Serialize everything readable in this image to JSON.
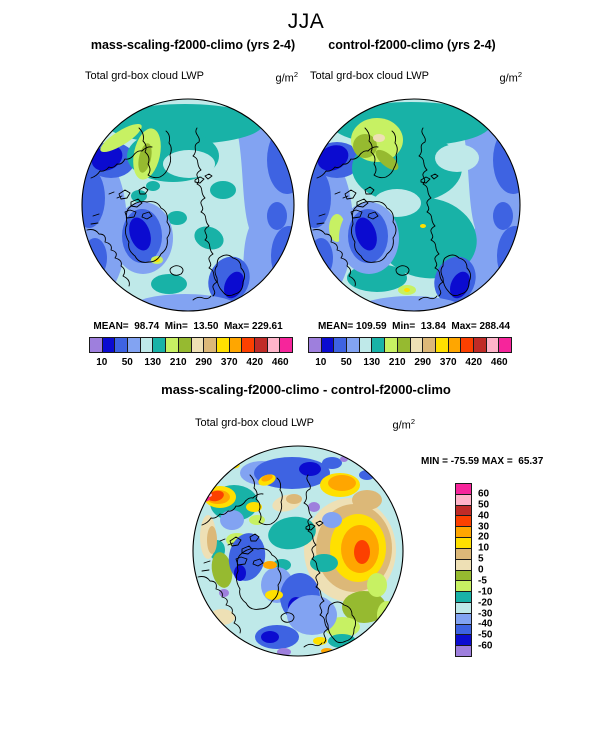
{
  "page": {
    "season_title": "JJA"
  },
  "panels": {
    "left": {
      "title": "mass-scaling-f2000-climo (yrs 2-4)",
      "field": "Total grd-box cloud LWP",
      "units": "g/m",
      "units_sup": "2",
      "stats": "MEAN=  98.74  Min=  13.50  Max= 229.61"
    },
    "right": {
      "title": "control-f2000-climo (yrs 2-4)",
      "field": "Total grd-box cloud LWP",
      "units": "g/m",
      "units_sup": "2",
      "stats": "MEAN= 109.59  Min=  13.84  Max= 288.44"
    },
    "diff": {
      "title": "mass-scaling-f2000-climo - control-f2000-climo",
      "field": "Total grd-box cloud LWP",
      "units": "g/m",
      "units_sup": "2",
      "minmax": "MIN = -75.59 MAX =  65.37"
    }
  },
  "colorbars": {
    "lwp": {
      "colors": [
        "#9e7fdd",
        "#0b0bd0",
        "#3e63e2",
        "#82a3f2",
        "#bfe9e9",
        "#18b2a7",
        "#c7f163",
        "#96ba30",
        "#eee0b5",
        "#dcb878",
        "#ffe000",
        "#ffa600",
        "#fc4000",
        "#c02b27",
        "#ffb4c9",
        "#f6259b"
      ],
      "labels": [
        "10",
        "50",
        "130",
        "210",
        "290",
        "370",
        "420",
        "460"
      ]
    },
    "diff": {
      "colors": [
        "#f6259b",
        "#ffb4c9",
        "#c02b27",
        "#fc4000",
        "#ffa600",
        "#ffe000",
        "#dcb878",
        "#eee0b5",
        "#96ba30",
        "#c7f163",
        "#18b2a7",
        "#bfe9e9",
        "#82a3f2",
        "#3e63e2",
        "#0b0bd0",
        "#9e7fdd"
      ],
      "labels": [
        "60",
        "50",
        "40",
        "30",
        "20",
        "10",
        "5",
        "0",
        "-5",
        "-10",
        "-20",
        "-30",
        "-40",
        "-50",
        "-60"
      ]
    }
  },
  "chart_data": [
    {
      "type": "heatmap",
      "subtype": "polar-stereographic-filled-contour-map",
      "panel": "mass-scaling",
      "season": "JJA",
      "title": "mass-scaling-f2000-climo (yrs 2-4)",
      "variable": "Total grd-box cloud LWP",
      "units": "g/m^2",
      "stats": {
        "mean": 98.74,
        "min": 13.5,
        "max": 229.61
      },
      "colorbar_labels": [
        10,
        50,
        130,
        210,
        290,
        370,
        420,
        460
      ],
      "palette": [
        "#9e7fdd",
        "#0b0bd0",
        "#3e63e2",
        "#82a3f2",
        "#bfe9e9",
        "#18b2a7",
        "#c7f163",
        "#96ba30",
        "#eee0b5",
        "#dcb878",
        "#ffe000",
        "#ffa600",
        "#fc4000",
        "#c02b27",
        "#ffb4c9",
        "#f6259b"
      ],
      "legend_position": "below"
    },
    {
      "type": "heatmap",
      "subtype": "polar-stereographic-filled-contour-map",
      "panel": "control",
      "season": "JJA",
      "title": "control-f2000-climo (yrs 2-4)",
      "variable": "Total grd-box cloud LWP",
      "units": "g/m^2",
      "stats": {
        "mean": 109.59,
        "min": 13.84,
        "max": 288.44
      },
      "colorbar_labels": [
        10,
        50,
        130,
        210,
        290,
        370,
        420,
        460
      ],
      "palette": [
        "#9e7fdd",
        "#0b0bd0",
        "#3e63e2",
        "#82a3f2",
        "#bfe9e9",
        "#18b2a7",
        "#c7f163",
        "#96ba30",
        "#eee0b5",
        "#dcb878",
        "#ffe000",
        "#ffa600",
        "#fc4000",
        "#c02b27",
        "#ffb4c9",
        "#f6259b"
      ],
      "legend_position": "below"
    },
    {
      "type": "heatmap",
      "subtype": "polar-stereographic-filled-contour-map",
      "panel": "difference",
      "title": "mass-scaling-f2000-climo - control-f2000-climo",
      "variable": "Total grd-box cloud LWP",
      "units": "g/m^2",
      "stats": {
        "min": -75.59,
        "max": 65.37
      },
      "colorbar_labels": [
        60,
        50,
        40,
        30,
        20,
        10,
        5,
        0,
        -5,
        -10,
        -20,
        -30,
        -40,
        -50,
        -60
      ],
      "palette": [
        "#f6259b",
        "#ffb4c9",
        "#c02b27",
        "#fc4000",
        "#ffa600",
        "#ffe000",
        "#dcb878",
        "#eee0b5",
        "#96ba30",
        "#c7f163",
        "#18b2a7",
        "#bfe9e9",
        "#82a3f2",
        "#3e63e2",
        "#0b0bd0",
        "#9e7fdd"
      ],
      "legend_position": "right"
    }
  ]
}
